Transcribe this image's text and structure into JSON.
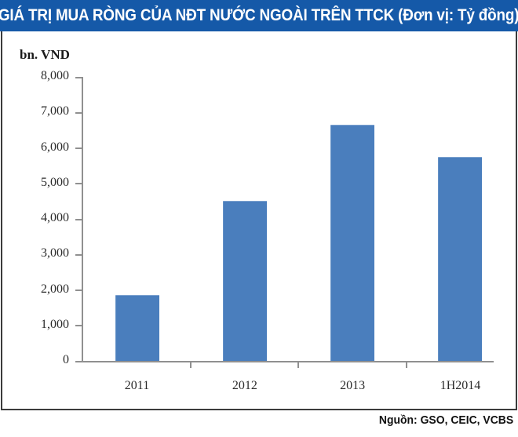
{
  "banner": {
    "title": "GIÁ TRỊ MUA RÒNG CỦA NĐT NƯỚC NGOÀI TRÊN TTCK (Đơn vị: Tỷ đồng)",
    "bg_color": "#1559A8",
    "text_color": "#FFFFFF"
  },
  "source_line": "Nguồn: GSO, CEIC, VCBS",
  "colors": {
    "bar_fill": "#4A7EBD",
    "axis_gray": "#909090",
    "frame_border": "#3C3C3C",
    "label_color": "#2B2B2B"
  },
  "chart_data": {
    "type": "bar",
    "title": "GIÁ TRỊ MUA RÒNG CỦA NĐT NƯỚC NGOÀI TRÊN TTCK (Đơn vị: Tỷ đồng)",
    "unit_label": "bn. VND",
    "categories": [
      "2011",
      "2012",
      "2013",
      "1H2014"
    ],
    "values": [
      1850,
      4500,
      6650,
      5750
    ],
    "xlabel": "",
    "ylabel": "bn. VND",
    "ylim": [
      0,
      8000
    ],
    "ytick_step": 1000,
    "ytick_labels_top_to_bottom": [
      "8,000",
      "7,000",
      "6,000",
      "5,000",
      "4,000",
      "3,000",
      "2,000",
      "1,000",
      "0"
    ],
    "grid": false,
    "legend": "none",
    "bar_color": "#4A7EBD"
  }
}
